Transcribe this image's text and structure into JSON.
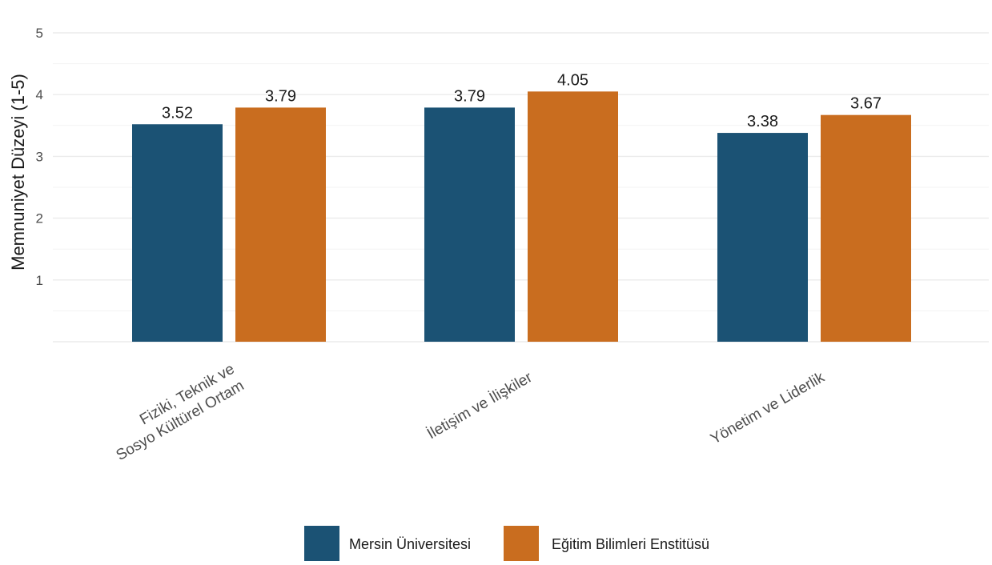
{
  "chart_data": {
    "type": "bar",
    "ylabel": "Memnuniyet Düzeyi (1-5)",
    "ylim": [
      0,
      5
    ],
    "yticks": [
      1,
      2,
      3,
      4,
      5
    ],
    "grid": true,
    "legend_position": "bottom",
    "categories": [
      [
        "Fiziki, Teknik ve",
        "Sosyo Kültürel Ortam"
      ],
      [
        "İletişim ve İlişkiler"
      ],
      [
        "Yönetim ve Liderlik"
      ]
    ],
    "series": [
      {
        "name": "Mersin Üniversitesi",
        "color": "#1b5274",
        "values": [
          3.52,
          3.79,
          3.38
        ]
      },
      {
        "name": "Eğitim Bilimleri Enstitüsü",
        "color": "#c96d1f",
        "values": [
          3.79,
          4.05,
          3.67
        ]
      }
    ]
  }
}
